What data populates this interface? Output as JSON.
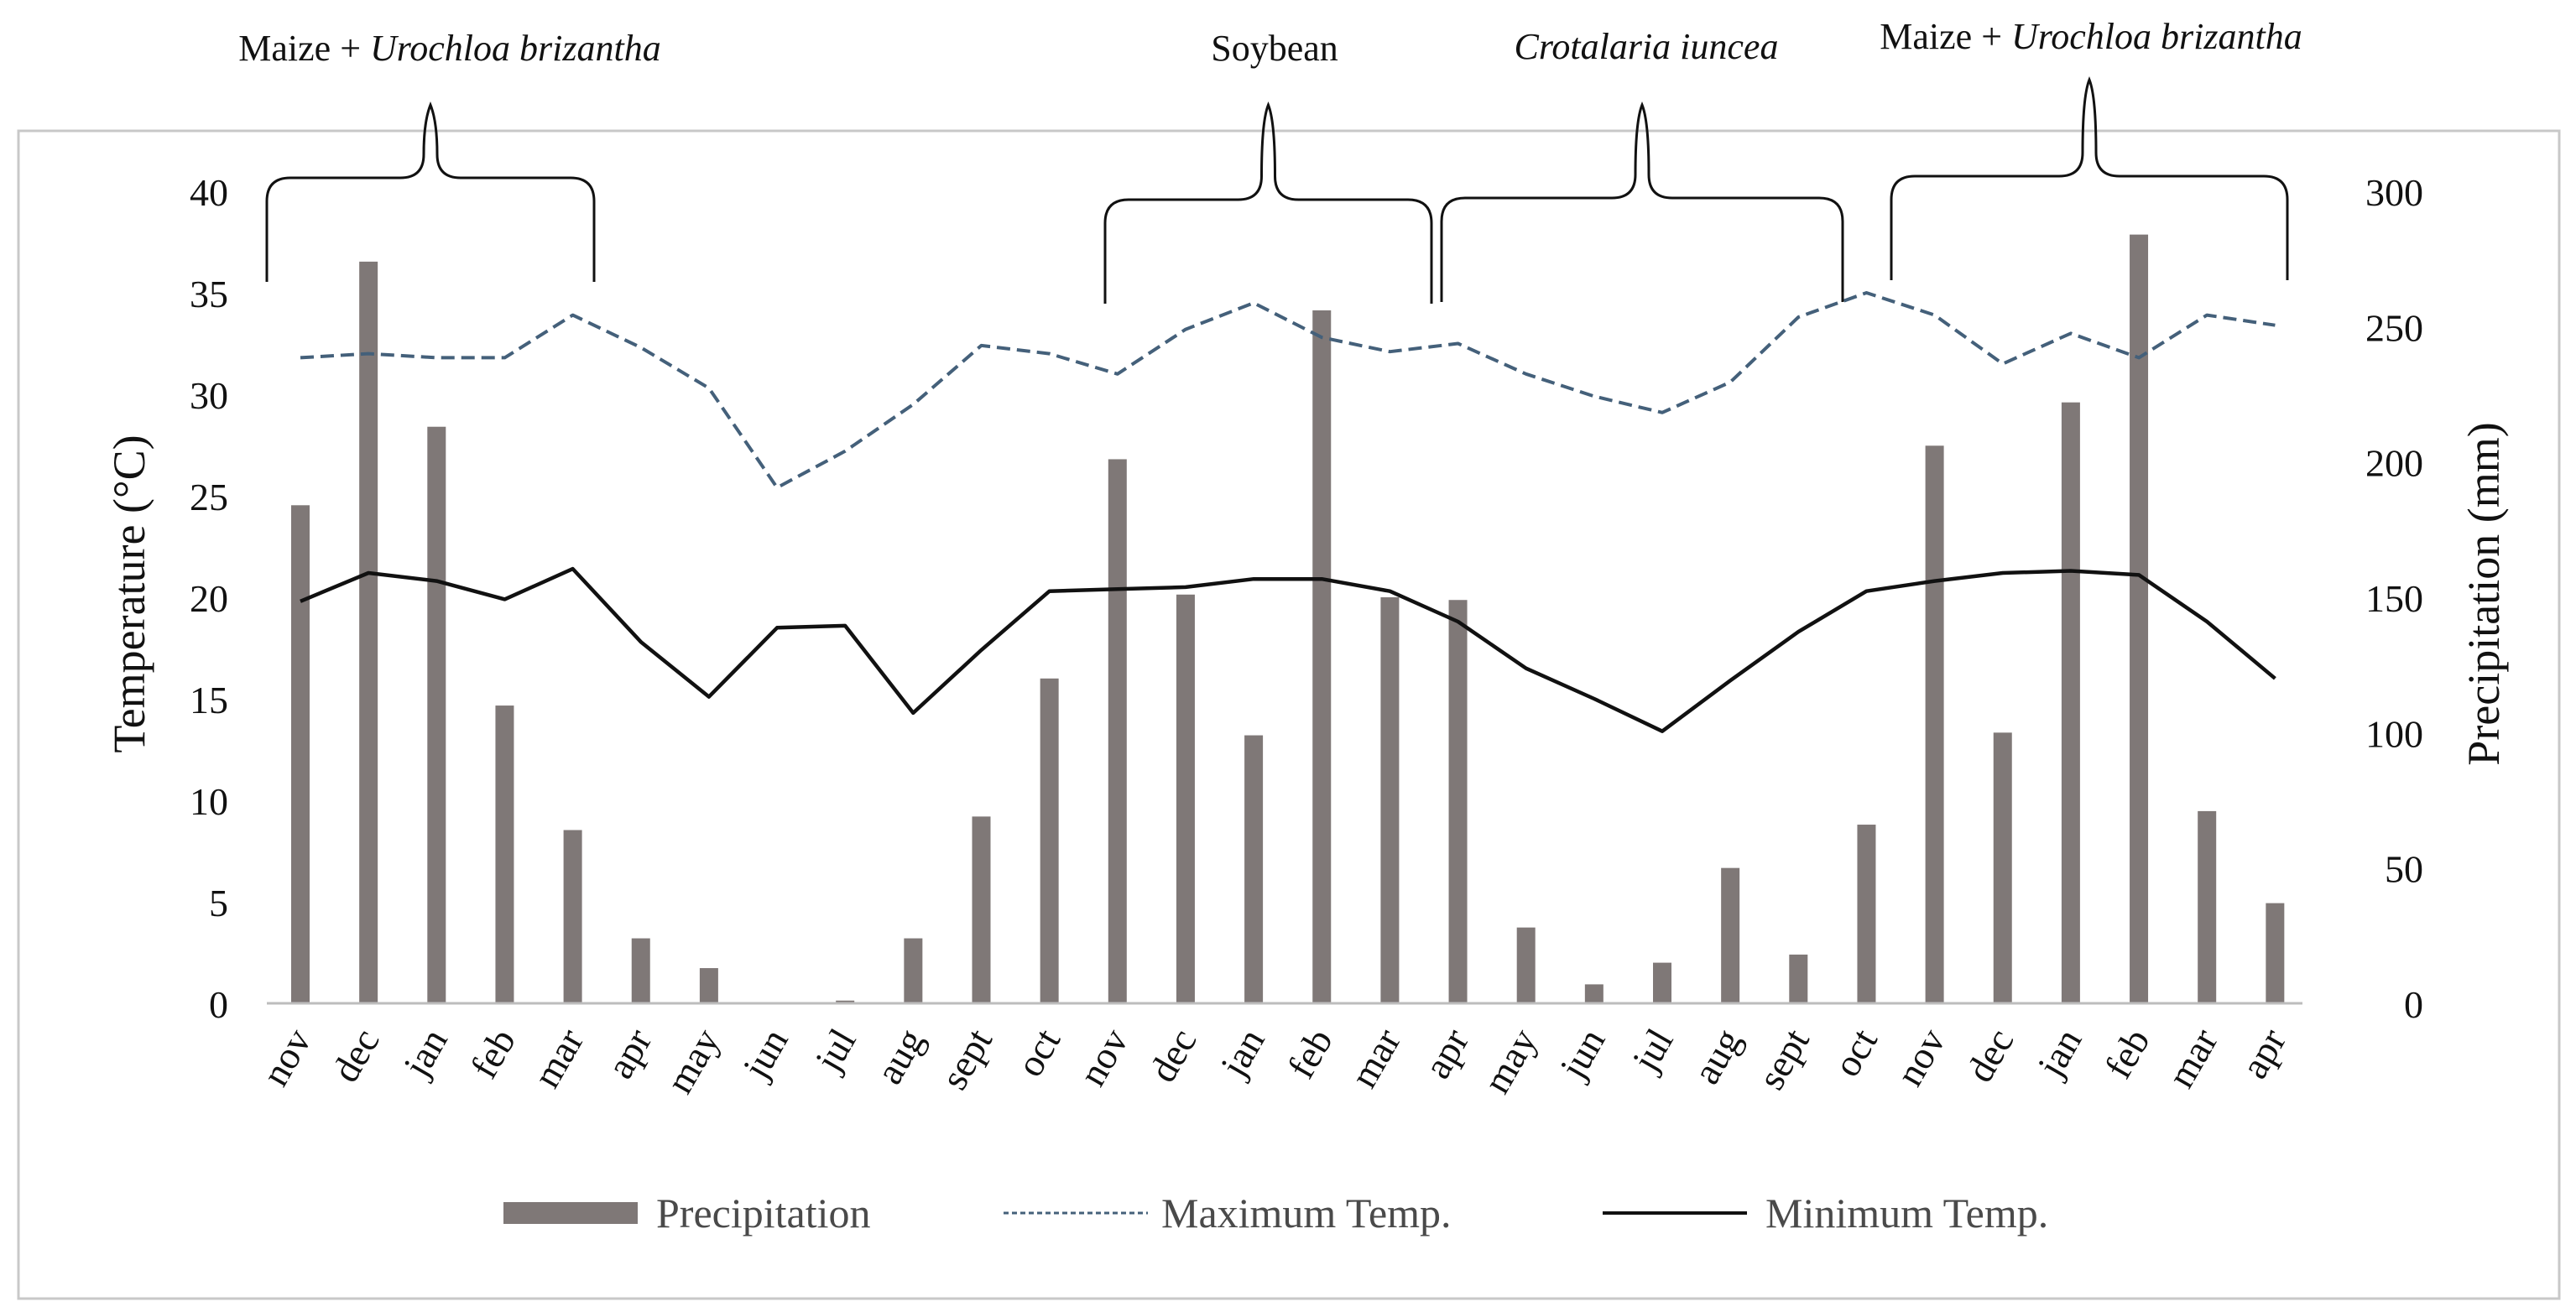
{
  "chart_data": {
    "type": "bar",
    "categories": [
      "nov",
      "dec",
      "jan",
      "feb",
      "mar",
      "apr",
      "may",
      "jun",
      "jul",
      "aug",
      "sept",
      "oct",
      "nov",
      "dec",
      "jan",
      "feb",
      "mar",
      "apr",
      "may",
      "jun",
      "jul",
      "aug",
      "sept",
      "oct",
      "nov",
      "dec",
      "jan",
      "feb",
      "mar",
      "apr"
    ],
    "series": [
      {
        "name": "Precipitation",
        "kind": "bar",
        "axis": "right",
        "color": "#7f7877",
        "values": [
          184,
          274,
          213,
          110,
          64,
          24,
          13,
          0,
          1,
          24,
          69,
          120,
          201,
          151,
          99,
          256,
          150,
          149,
          28,
          7,
          15,
          50,
          18,
          66,
          206,
          100,
          222,
          284,
          71,
          37
        ]
      },
      {
        "name": "Maximum Temp.",
        "kind": "line",
        "axis": "left",
        "color": "#44607a",
        "dash": "dashed",
        "values": [
          31.8,
          32.0,
          31.8,
          31.8,
          33.9,
          32.3,
          30.3,
          25.4,
          27.2,
          29.5,
          32.4,
          32.0,
          31.0,
          33.2,
          34.5,
          32.8,
          32.1,
          32.5,
          31.0,
          29.9,
          29.1,
          30.6,
          33.8,
          35.0,
          33.9,
          31.5,
          33.0,
          31.8,
          33.9,
          33.4
        ]
      },
      {
        "name": "Minimum Temp.",
        "kind": "line",
        "axis": "left",
        "color": "#111111",
        "dash": "solid",
        "values": [
          19.8,
          21.2,
          20.8,
          19.9,
          21.4,
          17.8,
          15.1,
          18.5,
          18.6,
          14.3,
          17.4,
          20.3,
          20.4,
          20.5,
          20.9,
          20.9,
          20.3,
          18.8,
          16.5,
          15.0,
          13.4,
          15.9,
          18.3,
          20.3,
          20.8,
          21.2,
          21.3,
          21.1,
          18.8,
          16.0
        ]
      }
    ],
    "y_left": {
      "label": "Temperature (°C)",
      "ylim": [
        0,
        40
      ],
      "ticks": [
        0,
        5,
        10,
        15,
        20,
        25,
        30,
        35,
        40
      ]
    },
    "y_right": {
      "label": "Precipitation (mm)",
      "ylim": [
        0,
        300
      ],
      "ticks": [
        0,
        50,
        100,
        150,
        200,
        250,
        300
      ]
    },
    "grid": false,
    "legend_position": "bottom",
    "crop_periods": [
      {
        "prefix": "Maize + ",
        "italic": "Urochloa brizantha",
        "start_index": 0,
        "end_index": 4
      },
      {
        "prefix": "Soybean",
        "italic": "",
        "start_index": 12,
        "end_index": 16
      },
      {
        "prefix": "",
        "italic": "Crotalaria iuncea",
        "start_index": 17,
        "end_index": 22
      },
      {
        "prefix": "Maize + ",
        "italic": "Urochloa brizantha",
        "start_index": 24,
        "end_index": 29
      }
    ]
  }
}
